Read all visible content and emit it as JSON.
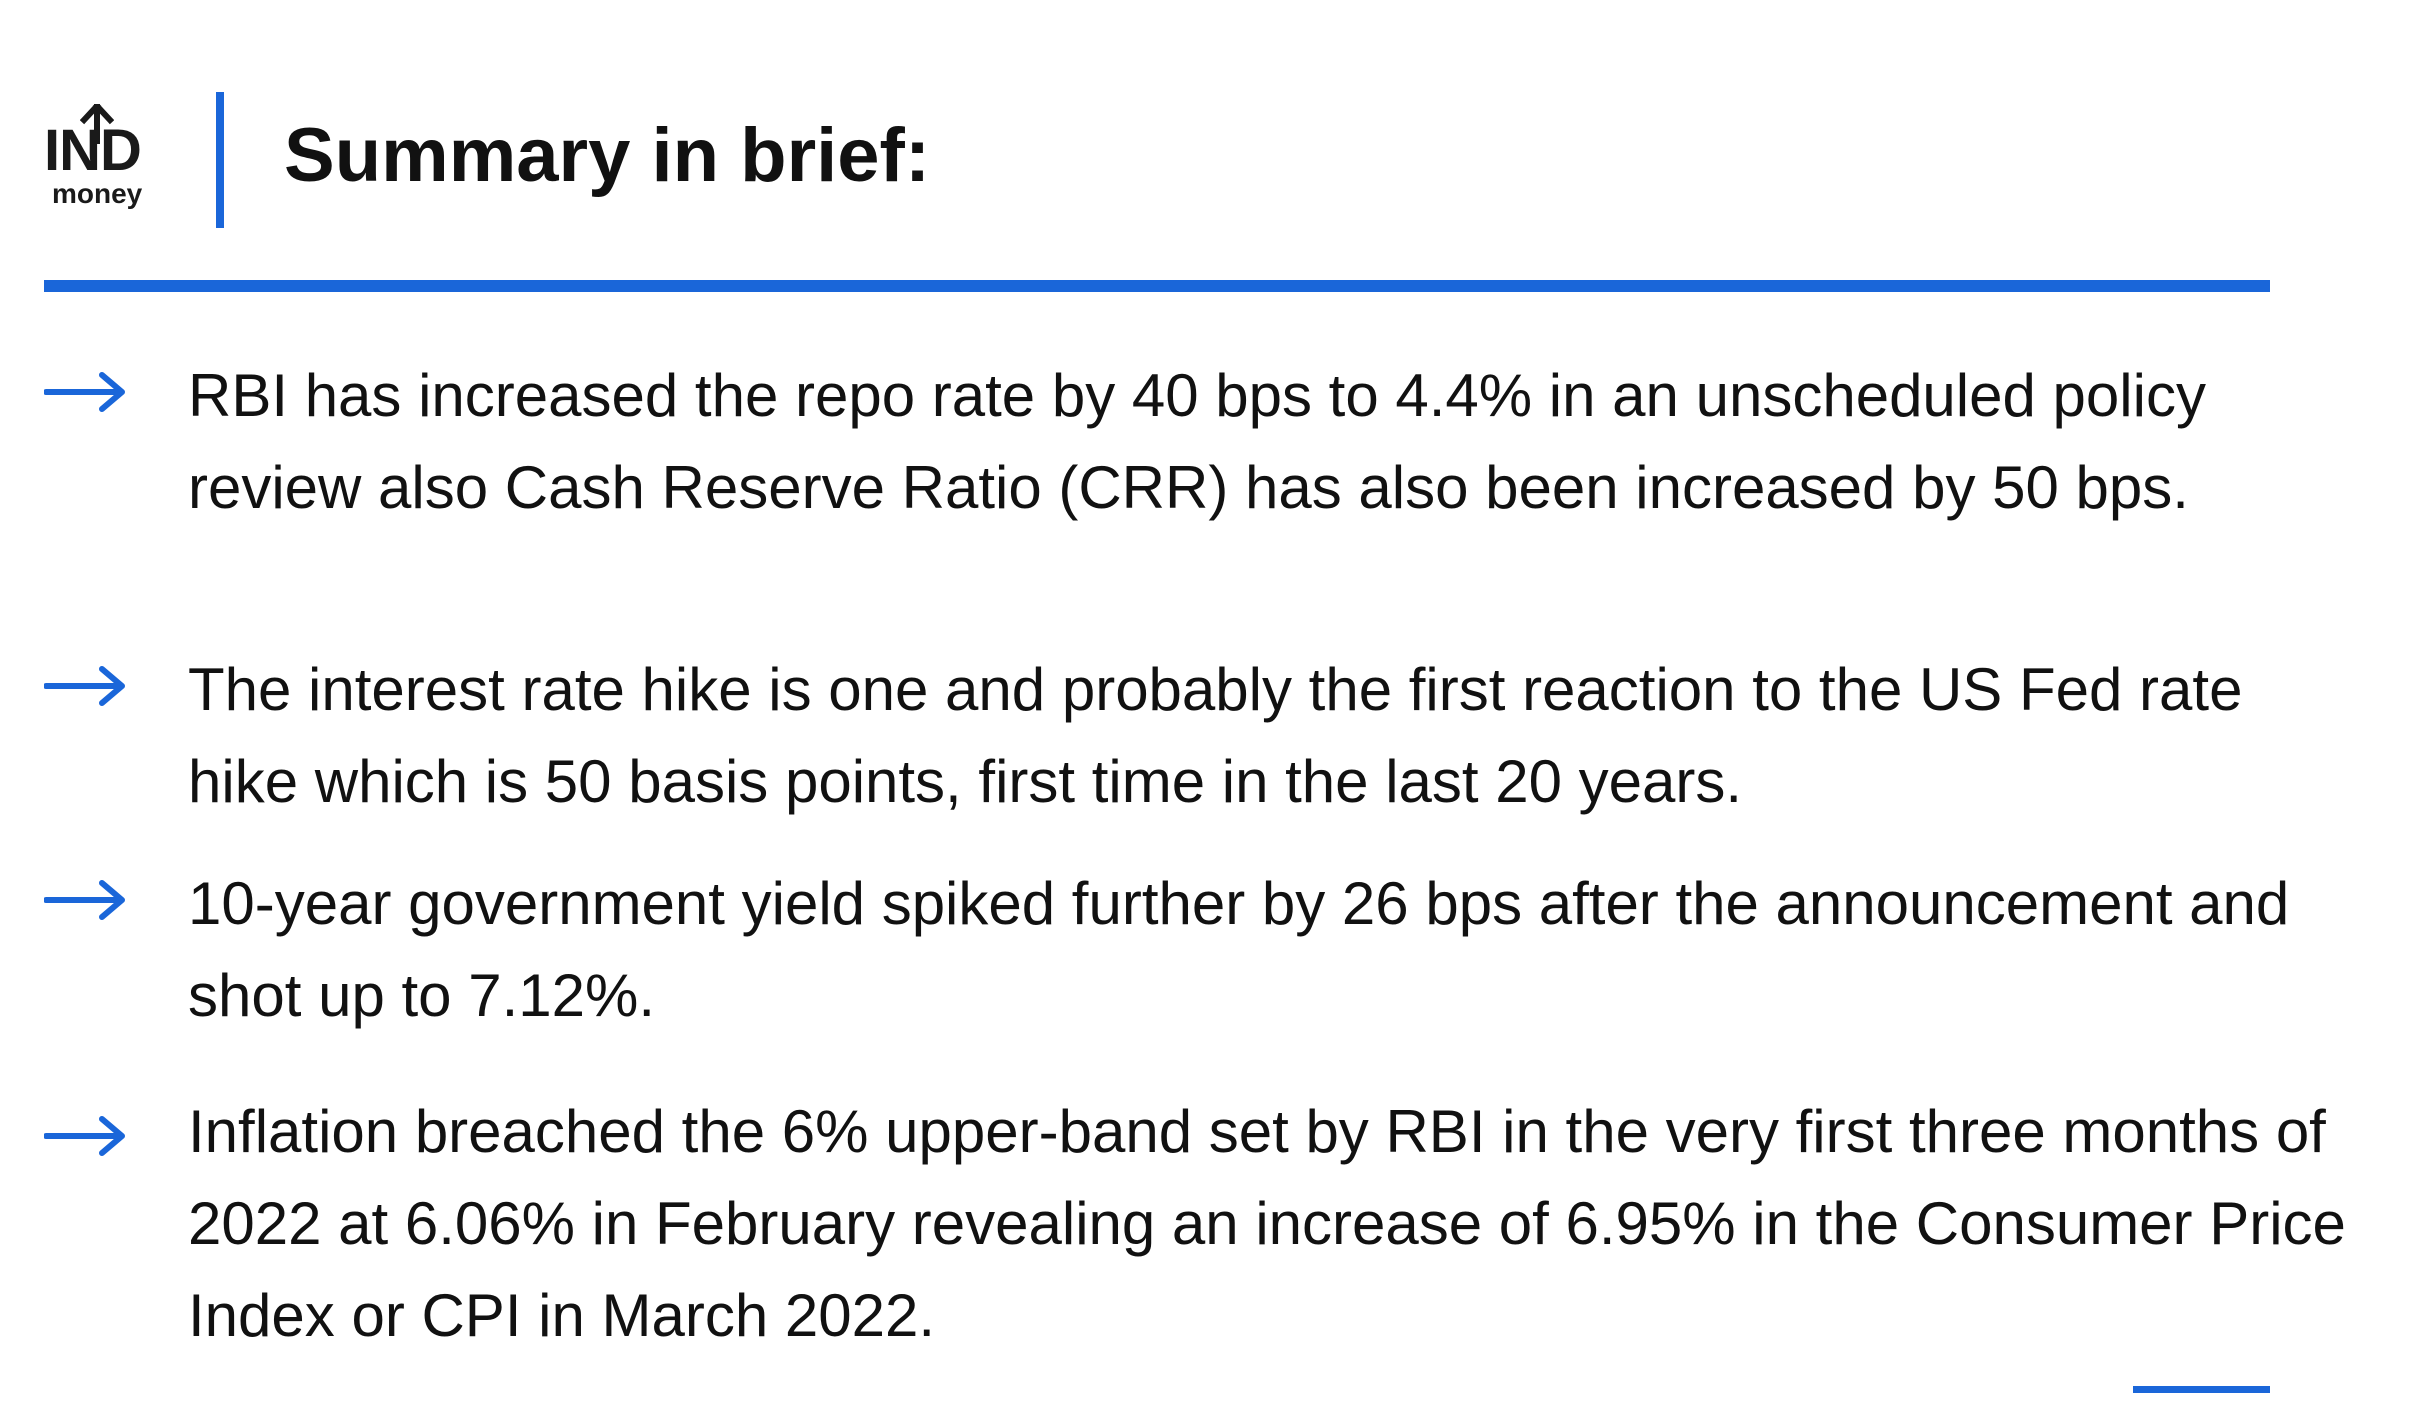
{
  "brand": {
    "logo_main": "IND",
    "logo_sub": "money"
  },
  "header": {
    "title": "Summary in brief:"
  },
  "bullets": [
    {
      "text": "RBI has increased the repo rate by 40 bps to 4.4% in an unscheduled policy review also Cash Reserve Ratio (CRR) has also been increased by 50 bps."
    },
    {
      "text": "The interest rate hike is one and probably the first reaction to the US Fed rate hike which is 50 basis points, first time in the last 20 years."
    },
    {
      "text": "10-year government yield spiked further by 26 bps after the announcement and shot up to 7.12%."
    },
    {
      "text": "Inflation breached the 6% upper-band set by RBI in the very first three months of 2022 at 6.06% in February revealing an increase of 6.95% in the Consumer Price Index or CPI in March 2022."
    }
  ],
  "colors": {
    "accent": "#1a66d9",
    "text": "#111111",
    "background": "#ffffff"
  },
  "icons": {
    "bullet": "arrow-right-icon",
    "logo": "indmoney-logo"
  }
}
